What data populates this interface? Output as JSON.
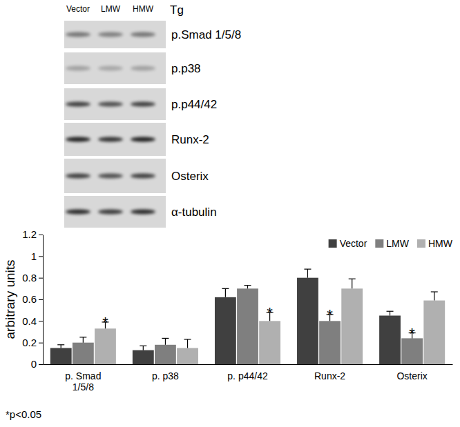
{
  "blot": {
    "group_label": "Tg",
    "lanes": [
      "Vector",
      "LMW",
      "HMW"
    ],
    "rows": [
      "p.Smad 1/5/8",
      "p.p38",
      "p.p44/42",
      "Runx-2",
      "Osterix",
      "α-tubulin"
    ]
  },
  "chart_data": {
    "type": "bar",
    "y_label": "arbitrary units",
    "categories": [
      "p. Smad 1/5/8",
      "p. p38",
      "p. p44/42",
      "Runx-2",
      "Osterix"
    ],
    "series": [
      {
        "name": "Vector",
        "color": "#404040",
        "values": [
          0.15,
          0.13,
          0.62,
          0.8,
          0.45
        ],
        "errors": [
          0.03,
          0.04,
          0.08,
          0.08,
          0.04
        ]
      },
      {
        "name": "LMW",
        "color": "#7f7f7f",
        "values": [
          0.2,
          0.18,
          0.7,
          0.4,
          0.24
        ],
        "errors": [
          0.05,
          0.06,
          0.03,
          0.06,
          0.05
        ]
      },
      {
        "name": "HMW",
        "color": "#b0b0b0",
        "values": [
          0.33,
          0.15,
          0.4,
          0.7,
          0.59
        ],
        "errors": [
          0.06,
          0.08,
          0.08,
          0.09,
          0.08
        ]
      }
    ],
    "ylim": [
      0,
      1.2
    ],
    "yticks": [
      0,
      0.2,
      0.4,
      0.6,
      0.8,
      1,
      1.2
    ],
    "grid": false,
    "legend": "top-right",
    "annotations": [
      {
        "text": "*",
        "series": 2,
        "category": 0
      },
      {
        "text": "*",
        "series": 2,
        "category": 2
      },
      {
        "text": "*",
        "series": 1,
        "category": 3
      },
      {
        "text": "*",
        "series": 1,
        "category": 4
      }
    ],
    "footnote": "*p<0.05"
  }
}
